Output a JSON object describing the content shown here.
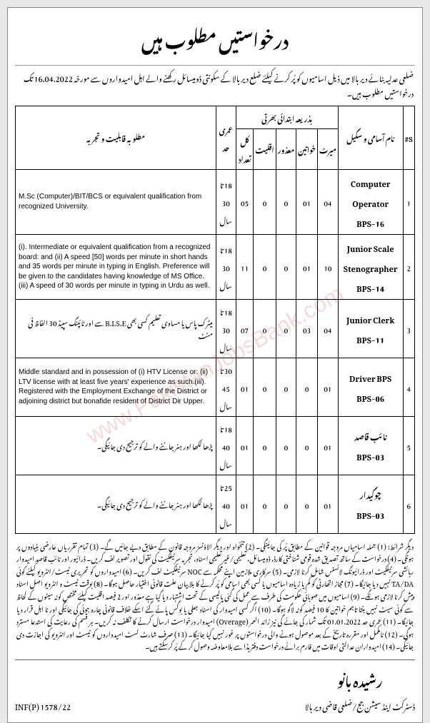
{
  "header": "درخواستیں مطلوب ہیں",
  "intro": "ضلعی عدلیہ بنائے دیر بالا میں ذیل اسامیوں کو پُر کرنے کیلئے ضلع دیر بالا کے سکونتی ڈومیسائل رکھنے والے اہل امیدواروں سے مورخہ 16.04.2022 تک درخواستیں مطلوب ہیں۔",
  "columns": {
    "sn": "S#",
    "post": "نام آسامی و سکیل",
    "recruit_group": "بذریعہ ابتدائی بھرتی",
    "merit": "میرٹ",
    "women": "خواتین",
    "disabled": "معذور",
    "minority": "اقلیت",
    "total": "کل تعداد",
    "age": "عمری حد",
    "qual": "مطلوبہ قابلیت و تجربہ"
  },
  "rows": [
    {
      "sn": "1",
      "post": "Computer Operator\nBPS-16",
      "merit": "04",
      "women": "01",
      "disabled": "0",
      "minority": "0",
      "total": "05",
      "age": "18 تا 30 سال",
      "qual": "M.Sc (Computer)/BIT/BCS or equivalent qualification from recognized University.",
      "qual_lang": "en"
    },
    {
      "sn": "2",
      "post": "Junior Scale Stenographer\nBPS-14",
      "merit": "10",
      "women": "01",
      "disabled": "0",
      "minority": "0",
      "total": "11",
      "age": "18 تا 30 سال",
      "qual": "(i). Intermediate or equivalent qualification from a recognized board: and (ii) A speed [50] words per minute in short hands and 35 words per minute in typing in English. Preference will be given to the candidates having knowledge of MS Office. (iii) A speed of 30 words per minute in typing in Urdu as well.",
      "qual_lang": "en"
    },
    {
      "sn": "3",
      "post": "Junior Clerk\nBPS-11",
      "merit": "04",
      "women": "03",
      "disabled": "0",
      "minority": "0",
      "total": "07",
      "age": "18 تا 30 سال",
      "qual": "میٹرک پاس یا مساوی تعلیم کسی بھی B.I.S.E سے اور ٹائپنگ سپیڈ 30 الفاظ فی منٹ",
      "qual_lang": "ur"
    },
    {
      "sn": "4",
      "post": "Driver BPS\nBPS-06",
      "merit": "01",
      "women": "0",
      "disabled": "0",
      "minority": "0",
      "total": "01",
      "age": "30 تا 45 سال",
      "qual": "Middle standard and in possession of (i) HTV License or: (ii) LTV license with at least five years' experience as such.(iii). Registered with the Employment Exchange of the District or adjoining district but bonafide resident of District Dir Upper.",
      "qual_lang": "en"
    },
    {
      "sn": "5",
      "post": "نائب قاصد\nBPS-03",
      "merit": "01",
      "women": "0",
      "disabled": "0",
      "minority": "0",
      "total": "01",
      "age": "18 تا 40 سال",
      "qual": "پڑھا لکھا اور ہنر جاننے والے کو ترجیح دی جائیگی۔",
      "qual_lang": "ur"
    },
    {
      "sn": "6",
      "post": "چوکیدار\nBPS-03",
      "merit": "01",
      "women": "0",
      "disabled": "0",
      "minority": "0",
      "total": "01",
      "age": "25 تا 40 سال",
      "qual": "پڑھا لکھا اور ہنر جاننے والے کو ترجیح دی جائیگی۔",
      "qual_lang": "ur"
    }
  ],
  "terms": "دیگر شرائط: (1) جملہ اسامیاں مروجہ قوانین کے مطابق پُر کی جائینگی۔ (2) تنخواہ اور دیگر الاؤنسز مروجہ قانون کے مطابق دیے جائیں گے۔ (3) تمام تقرریاں عارضی بنیادوں پر ہونگی۔ (4) درخواست کے ساتھ تصدیق شدہ قومی شناختی کارڈ، ڈومیسائل، تعلیمی/غیر تعلیمی اسناد، تجربہ سرٹیفکیٹ کی نقول اور تصویر لف کریں۔ ڈرائیور اور نائب قاصد امیدوار رہائشی سرٹیفکیٹ اور ڈرائیونگ لائسنس شامل کرنا لازمی۔ (5) سرکاری ملازمین اپنے محکمہ سے NOC سرٹیفکیٹ لف کریں۔ (6) امیدواروں کو تحریری ٹیسٹ/انٹرویو کیلئے کوئی TA/DA نہیں دیا جائیگا۔ (7) مجاز اتھارٹی کو کم یا زیادہ اسامیوں یا کسی بھی اسامی کو پُر کرنے کا بلا بیان علت قانونی اختیار حاصل ہوگا۔ (8) بوقت ٹیسٹ و انٹرویو اصل اسناد پیش کرنا لازمی ہونگے۔ (9) اسامیوں میں صوبائی حکومت کی طرف سے عمل کی گئی پالیسی کے تحت اشتہار دیا گیا ہے معذور اور 2 فیصد اقلیت کیلئے مختص کوٹہ سیٹوں کے لحاظ سے کوئی سیٹ نہیں بنتا تاہم خواتین کا 10 فیصد کوٹہ لاگو ہوگا۔ (10) اگر کسی امیدوار کی اسناد جعلی یا بوگس پائے گئے اسکے خلاف قانونی چارہ جوئی کی جائیگی اور نا اہل قرار دیا جائیگا۔ (11) عمری حد 01.01.2022 تک شمار کی جائے گی نیز زائد العمر (Overage) امیدوار درخواست ارسال کرنے کا تکلف نہ کریں۔ ہر قسم کی رعایت کی استدعا مسترد ہوگی۔ (12) نامکمل اور مقررہ تاریخ کے بعد موصول ہونے والی درخواستوں پر غور نہیں کیا جائیگا۔ (13) صرف شارٹ لسٹ امیدواروں کو ٹیسٹ اور انٹرویو کی اجازت دی جائیگی۔ (14) امیدواران عدالتی اوقات میں فارم برائے درخواست دفتر ہذا سے بلامعاوضہ وصول کر کے پُر کرسکتے ہیں۔",
  "signature": {
    "name": "رشیدہ بانو",
    "title": "ڈسٹرکٹ اینڈ سیشن جج/ضلعی قاضی دیر بالا"
  },
  "ref": "INF(P) 1578/22",
  "watermark": "www.PakistanJobsBank.com"
}
